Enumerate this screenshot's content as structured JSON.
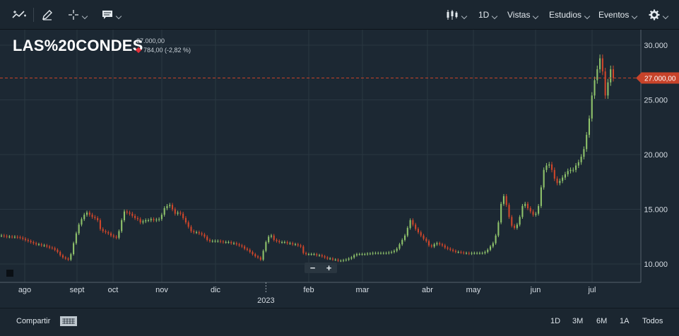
{
  "toolbar": {
    "interval_label": "1D",
    "views_label": "Vistas",
    "studies_label": "Estudios",
    "events_label": "Eventos"
  },
  "header": {
    "ticker": "LAS%20CONDES",
    "last_price": "27.000,00",
    "change": "784,00 (-2,82 %)"
  },
  "price_tag": "27.000,00",
  "bottom": {
    "share_label": "Compartir",
    "ranges": [
      "1D",
      "3M",
      "6M",
      "1A",
      "Todos"
    ]
  },
  "colors": {
    "up": "#8fc36b",
    "down": "#d0462a",
    "grid": "#2a3742",
    "price_line": "#c8432a"
  },
  "chart_data": {
    "type": "candlestick",
    "title": "",
    "ylim": [
      8300,
      31500
    ],
    "ytick_labels": [
      "10.000",
      "15.000",
      "20.000",
      "25.000",
      "30.000"
    ],
    "ytick_values": [
      10000,
      15000,
      20000,
      25000,
      30000
    ],
    "xtick_labels": [
      "ago",
      "sept",
      "oct",
      "nov",
      "dic",
      "feb",
      "mar",
      "abr",
      "may",
      "jun",
      "jul"
    ],
    "year_label": "2023",
    "last_value": 27000,
    "close_series": [
      12600,
      12550,
      12500,
      12500,
      12480,
      12480,
      12450,
      12400,
      12300,
      12200,
      12100,
      12000,
      11900,
      11800,
      11800,
      11700,
      11700,
      11600,
      11500,
      11450,
      11300,
      11100,
      10800,
      10600,
      10500,
      10400,
      10900,
      11900,
      12800,
      13600,
      14100,
      14500,
      14700,
      14500,
      14300,
      14200,
      14000,
      13200,
      13000,
      12900,
      12800,
      12600,
      12500,
      12400,
      13000,
      14000,
      14800,
      14700,
      14600,
      14400,
      14200,
      14100,
      13800,
      13900,
      14000,
      14000,
      14100,
      14000,
      14050,
      14100,
      14500,
      15100,
      15300,
      15400,
      15000,
      14600,
      14700,
      14600,
      14200,
      13800,
      13400,
      13000,
      12900,
      12900,
      12800,
      12700,
      12500,
      12200,
      12100,
      12100,
      12100,
      12100,
      12050,
      12000,
      12000,
      12000,
      11900,
      11900,
      11800,
      11700,
      11600,
      11400,
      11300,
      11100,
      10900,
      10700,
      10600,
      10400,
      11200,
      12000,
      12500,
      12600,
      12200,
      12100,
      12000,
      12000,
      12000,
      11900,
      11900,
      11800,
      11800,
      11700,
      11600,
      11000,
      10900,
      10900,
      10900,
      10900,
      10800,
      10800,
      10700,
      10600,
      10500,
      10500,
      10400,
      10400,
      10300,
      10300,
      10350,
      10400,
      10500,
      10600,
      10800,
      10900,
      10900,
      10900,
      10900,
      10950,
      10950,
      11000,
      11000,
      11000,
      11000,
      11000,
      11000,
      11050,
      11100,
      11200,
      11400,
      11800,
      12200,
      12600,
      13300,
      14000,
      13600,
      13200,
      12900,
      12600,
      12300,
      12100,
      11700,
      11600,
      11800,
      11900,
      11800,
      11700,
      11500,
      11400,
      11300,
      11200,
      11100,
      11100,
      11050,
      11000,
      11000,
      10950,
      11000,
      11000,
      11000,
      11000,
      11000,
      11100,
      11300,
      11600,
      11900,
      12600,
      13800,
      15500,
      16200,
      15400,
      14300,
      13500,
      13300,
      13600,
      14300,
      15300,
      15500,
      15100,
      14800,
      14500,
      14600,
      15300,
      17000,
      18600,
      19000,
      19100,
      18600,
      17800,
      17400,
      17600,
      17900,
      18200,
      18500,
      18600,
      18600,
      19000,
      19300,
      19800,
      20500,
      21800,
      23300,
      25400,
      26800,
      27800,
      28800,
      27600,
      25400,
      26600,
      27800,
      27000
    ],
    "year_boundary_index": 99
  }
}
